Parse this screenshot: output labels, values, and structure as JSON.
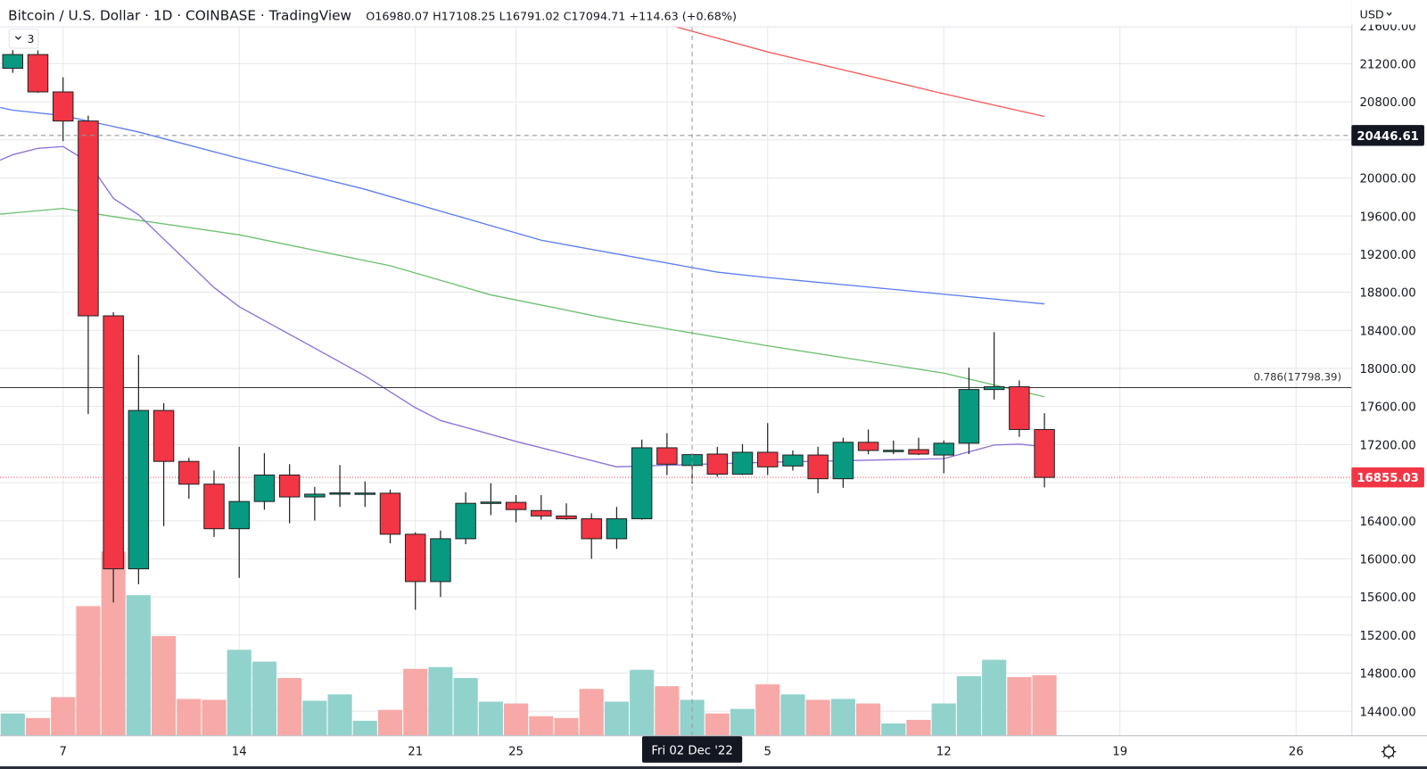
{
  "header": {
    "title": "Bitcoin / U.S. Dollar · 1D · COINBASE · TradingView",
    "ohlc": "O16980.07 H17108.25 L16791.02 C17094.71 +114.63 (+0.68%)",
    "indicator_toggle_count": "3",
    "currency": "USD"
  },
  "colors": {
    "up": "#089981",
    "down": "#f23645",
    "volume_up": "#92d2cc",
    "volume_down": "#f7a9a7",
    "ma_red": "#f55a5a",
    "ma_blue": "#5b7cf5",
    "ma_green": "#6cc070",
    "ma_purple": "#8e6fd8",
    "crosshair_label_bg": "#131722"
  },
  "chart_data": {
    "type": "candlestick",
    "x_dates": [
      "Nov 5",
      "Nov 6",
      "Nov 7",
      "Nov 8",
      "Nov 9",
      "Nov 10",
      "Nov 11",
      "Nov 12",
      "Nov 13",
      "Nov 14",
      "Nov 15",
      "Nov 16",
      "Nov 17",
      "Nov 18",
      "Nov 19",
      "Nov 20",
      "Nov 21",
      "Nov 22",
      "Nov 23",
      "Nov 24",
      "Nov 25",
      "Nov 26",
      "Nov 27",
      "Nov 28",
      "Nov 29",
      "Nov 30",
      "Dec 1",
      "Dec 2",
      "Dec 3",
      "Dec 4",
      "Dec 5",
      "Dec 6",
      "Dec 7",
      "Dec 8",
      "Dec 9",
      "Dec 10",
      "Dec 11",
      "Dec 12",
      "Dec 13",
      "Dec 14",
      "Dec 15",
      "Dec 16"
    ],
    "ohlc": [
      [
        21152,
        21343,
        21104,
        21296
      ],
      [
        21296,
        21340,
        20895,
        20904
      ],
      [
        20904,
        21057,
        20387,
        20598
      ],
      [
        20598,
        20655,
        17520,
        18552
      ],
      [
        18552,
        18591,
        15542,
        15895
      ],
      [
        15895,
        18141,
        15733,
        17558
      ],
      [
        17558,
        17635,
        16344,
        17023
      ],
      [
        17023,
        17061,
        16631,
        16784
      ],
      [
        16784,
        16927,
        16230,
        16316
      ],
      [
        16316,
        17176,
        15800,
        16602
      ],
      [
        16602,
        17109,
        16516,
        16880
      ],
      [
        16880,
        16994,
        16373,
        16650
      ],
      [
        16650,
        16755,
        16402,
        16679
      ],
      [
        16689,
        16985,
        16545,
        16693
      ],
      [
        16689,
        16813,
        16545,
        16691
      ],
      [
        16689,
        16727,
        16163,
        16258
      ],
      [
        16258,
        16278,
        15465,
        15761
      ],
      [
        15761,
        16297,
        15599,
        16211
      ],
      [
        16211,
        16698,
        16153,
        16583
      ],
      [
        16593,
        16794,
        16459,
        16596
      ],
      [
        16593,
        16669,
        16383,
        16517
      ],
      [
        16507,
        16669,
        16411,
        16450
      ],
      [
        16450,
        16583,
        16411,
        16421
      ],
      [
        16421,
        16478,
        16000,
        16211
      ],
      [
        16211,
        16545,
        16105,
        16421
      ],
      [
        16421,
        17252,
        16411,
        17166
      ],
      [
        17166,
        17319,
        16880,
        16994
      ],
      [
        16980.07,
        17108.25,
        16791.02,
        17094.71
      ],
      [
        17100,
        17176,
        16861,
        16889
      ],
      [
        16889,
        17205,
        16880,
        17119
      ],
      [
        17119,
        17425,
        16880,
        16966
      ],
      [
        16975,
        17138,
        16927,
        17090
      ],
      [
        17090,
        17176,
        16689,
        16841
      ],
      [
        16841,
        17272,
        16746,
        17224
      ],
      [
        17224,
        17358,
        17100,
        17138
      ],
      [
        17138,
        17243,
        17100,
        17140
      ],
      [
        17147,
        17272,
        17090,
        17100
      ],
      [
        17090,
        17243,
        16899,
        17214
      ],
      [
        17214,
        18008,
        17100,
        17778
      ],
      [
        17778,
        18380,
        17673,
        17807
      ],
      [
        17807,
        17874,
        17281,
        17358
      ],
      [
        17358,
        17530,
        16750,
        16855.03
      ]
    ],
    "volume_relative": [
      24,
      19,
      42,
      142,
      202,
      154,
      109,
      40,
      39,
      94,
      81,
      63,
      38,
      45,
      16,
      28,
      73,
      75,
      63,
      37,
      35,
      21,
      19,
      51,
      37,
      72,
      54,
      39,
      24,
      29,
      56,
      45,
      39,
      40,
      35,
      13,
      17,
      35,
      65,
      83,
      64,
      66
    ],
    "moving_averages": [
      {
        "color_key": "ma_red",
        "points": [
          [
            22,
            21900
          ],
          [
            23,
            21830
          ],
          [
            30,
            21324
          ],
          [
            37,
            20884
          ],
          [
            41,
            20646
          ]
        ]
      },
      {
        "color_key": "ma_blue",
        "points": [
          [
            -0.5,
            20740
          ],
          [
            0,
            20712
          ],
          [
            2,
            20655
          ],
          [
            5,
            20483
          ],
          [
            9,
            20206
          ],
          [
            14,
            19881
          ],
          [
            21,
            19346
          ],
          [
            28,
            19011
          ],
          [
            30,
            18954
          ],
          [
            35,
            18830
          ],
          [
            41,
            18677
          ]
        ]
      },
      {
        "color_key": "ma_green",
        "points": [
          [
            -0.5,
            19620
          ],
          [
            0,
            19632
          ],
          [
            2,
            19680
          ],
          [
            4,
            19594
          ],
          [
            9,
            19403
          ],
          [
            15,
            19078
          ],
          [
            19,
            18772
          ],
          [
            24,
            18505
          ],
          [
            30,
            18237
          ],
          [
            37,
            17950
          ],
          [
            41,
            17702
          ]
        ]
      },
      {
        "color_key": "ma_purple",
        "points": [
          [
            -0.5,
            20187
          ],
          [
            0,
            20244
          ],
          [
            1,
            20311
          ],
          [
            2,
            20330
          ],
          [
            3,
            20168
          ],
          [
            4,
            19785
          ],
          [
            5,
            19613
          ],
          [
            8,
            18849
          ],
          [
            9,
            18648
          ],
          [
            14,
            17922
          ],
          [
            16,
            17587
          ],
          [
            17,
            17453
          ],
          [
            20,
            17233
          ],
          [
            24,
            16966
          ],
          [
            25,
            16975
          ],
          [
            30,
            17014
          ],
          [
            37,
            17052
          ],
          [
            39,
            17195
          ],
          [
            40,
            17205
          ],
          [
            41,
            17176
          ]
        ]
      }
    ],
    "fib_level": {
      "label": "0.786(17798.39)",
      "price": 17798.39
    },
    "last_price": {
      "label": "16855.03",
      "price": 16855.03
    },
    "crosshair": {
      "price_label": "20446.61",
      "price": 20446.61,
      "date_label": "Fri 02 Dec '22",
      "date_index": 27
    },
    "y_ticks": [
      "21600.00",
      "21200.00",
      "20800.00",
      "20000.00",
      "19600.00",
      "19200.00",
      "18800.00",
      "18400.00",
      "18000.00",
      "17600.00",
      "17200.00",
      "16400.00",
      "16000.00",
      "15600.00",
      "15200.00",
      "14800.00",
      "14400.00"
    ],
    "x_ticks": [
      {
        "label": "7",
        "index": 2
      },
      {
        "label": "14",
        "index": 9
      },
      {
        "label": "21",
        "index": 16
      },
      {
        "label": "25",
        "index": 20
      },
      {
        "label": "5",
        "index": 30
      },
      {
        "label": "12",
        "index": 37
      },
      {
        "label": "19",
        "index": 44
      },
      {
        "label": "26",
        "index": 51
      }
    ],
    "month_gridline_index": 26,
    "grid": true
  }
}
